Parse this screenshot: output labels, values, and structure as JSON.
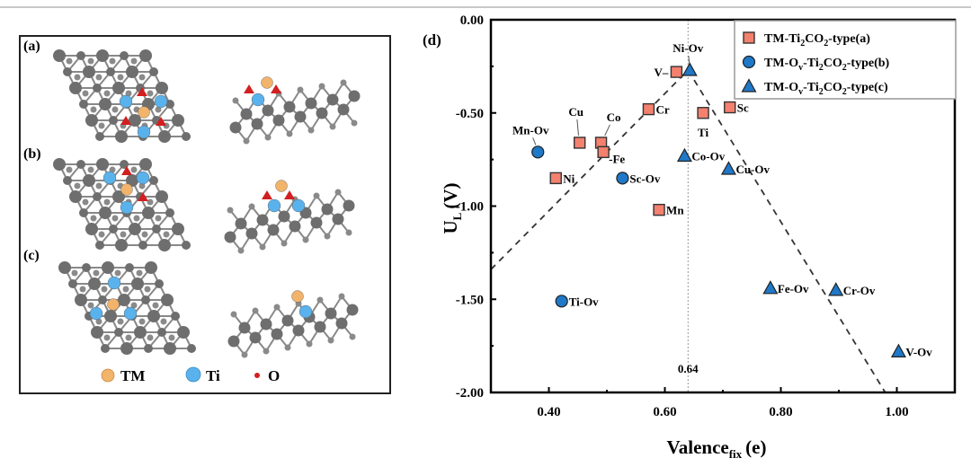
{
  "structures": {
    "panel_labels": [
      "(a)",
      "(b)",
      "(c)"
    ],
    "legend": [
      {
        "label": "TM",
        "color": "#f2b36b"
      },
      {
        "label": "Ti",
        "color": "#5ab2ec"
      },
      {
        "label": "O",
        "color": "#d21f1f"
      }
    ],
    "lattice_color": "#6e6e6e"
  },
  "chart_data": {
    "type": "scatter",
    "panel_label": "(d)",
    "xlabel": "Valence",
    "xlabel_sub": "fix",
    "xlabel_unit": "(e)",
    "ylabel": "U",
    "ylabel_sub": "L",
    "ylabel_unit": "(V)",
    "xlim": [
      0.3,
      1.1
    ],
    "ylim": [
      -2.0,
      0.0
    ],
    "xticks": [
      0.4,
      0.6,
      0.8,
      1.0
    ],
    "xtick_labels": [
      "0.40",
      "0.60",
      "0.80",
      "1.00"
    ],
    "yticks": [
      0.0,
      -0.5,
      -1.0,
      -1.5,
      -2.0
    ],
    "ytick_labels": [
      "0.00",
      "-0.50",
      "-1.00",
      "-1.50",
      "-2.00"
    ],
    "grid": false,
    "legend_position": "top-right",
    "reference_line": {
      "x": 0.64,
      "label": "0.64"
    },
    "trend_lines": [
      {
        "points": [
          [
            0.3,
            -1.34
          ],
          [
            0.64,
            -0.27
          ]
        ]
      },
      {
        "points": [
          [
            0.64,
            -0.27
          ],
          [
            0.98,
            -2.0
          ]
        ]
      }
    ],
    "series": [
      {
        "name": "TM-Ti2CO2-type(a)",
        "legend_html": [
          "TM-Ti",
          "2",
          "CO",
          "2",
          "-type(a)"
        ],
        "marker": "square",
        "color": "#f4806e",
        "points": [
          {
            "label": "V",
            "x": 0.62,
            "y": -0.28
          },
          {
            "label": "Cr",
            "x": 0.572,
            "y": -0.48
          },
          {
            "label": "Ti",
            "x": 0.666,
            "y": -0.5
          },
          {
            "label": "Sc",
            "x": 0.712,
            "y": -0.47
          },
          {
            "label": "Cu",
            "x": 0.453,
            "y": -0.66
          },
          {
            "label": "Co",
            "x": 0.49,
            "y": -0.66
          },
          {
            "label": "Fe",
            "x": 0.494,
            "y": -0.71
          },
          {
            "label": "Ni",
            "x": 0.412,
            "y": -0.85
          },
          {
            "label": "Mn",
            "x": 0.59,
            "y": -1.02
          }
        ]
      },
      {
        "name": "TM-Ov-Ti2CO2-type(b)",
        "legend_html": [
          "TM-O",
          "v",
          "-Ti",
          "2",
          "CO",
          "2",
          "-type(b)"
        ],
        "marker": "circle",
        "color": "#1f78c8",
        "points": [
          {
            "label": "Mn-Ov",
            "x": 0.381,
            "y": -0.71
          },
          {
            "label": "Sc-Ov",
            "x": 0.527,
            "y": -0.85
          },
          {
            "label": "Ti-Ov",
            "x": 0.422,
            "y": -1.51
          }
        ]
      },
      {
        "name": "TM-Ov-Ti2CO2-type(c)",
        "legend_html": [
          "TM-O",
          "v",
          "-Ti",
          "2",
          "CO",
          "2",
          "-type(c)"
        ],
        "marker": "triangle",
        "color": "#1f78c8",
        "points": [
          {
            "label": "Ni-Ov",
            "x": 0.643,
            "y": -0.27
          },
          {
            "label": "Co-Ov",
            "x": 0.634,
            "y": -0.73
          },
          {
            "label": "Cu-Ov",
            "x": 0.71,
            "y": -0.8
          },
          {
            "label": "Fe-Ov",
            "x": 0.782,
            "y": -1.44
          },
          {
            "label": "Cr-Ov",
            "x": 0.895,
            "y": -1.45
          },
          {
            "label": "V-Ov",
            "x": 1.003,
            "y": -1.78
          }
        ]
      }
    ]
  }
}
